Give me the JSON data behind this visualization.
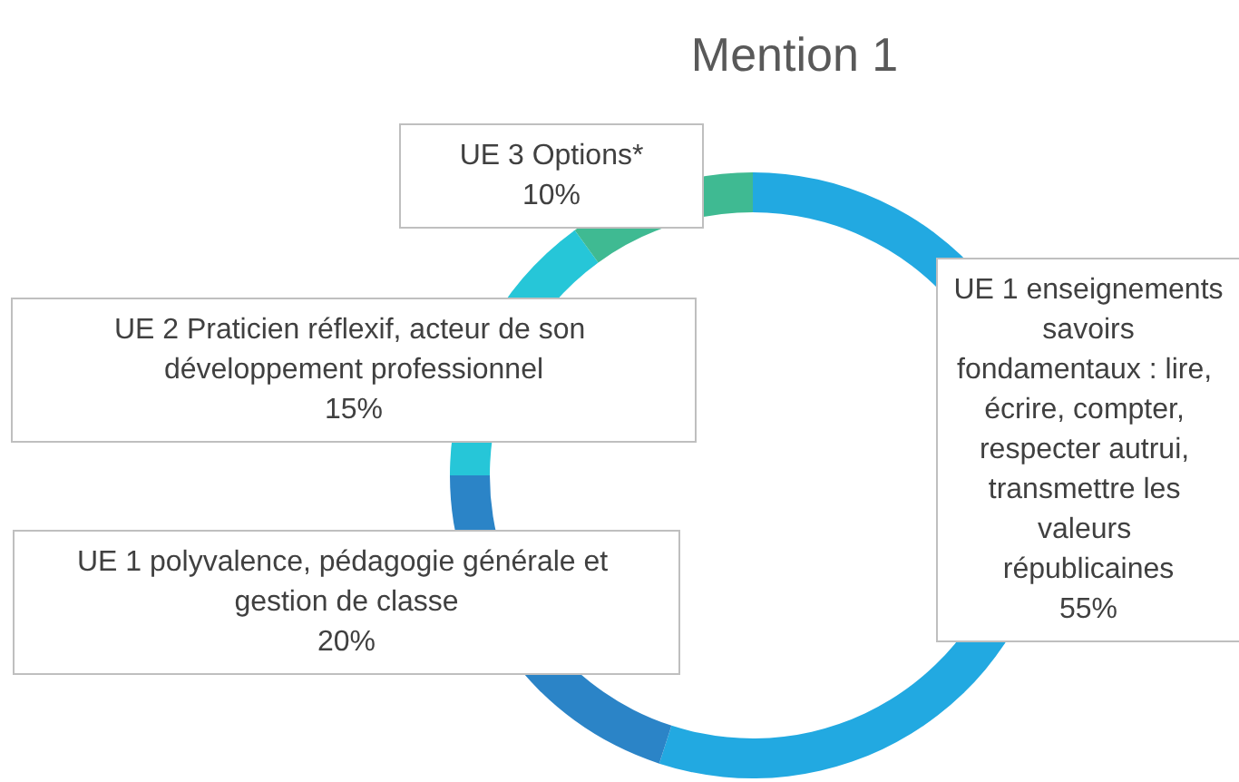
{
  "chart_data": {
    "type": "donut",
    "title": "Mention 1",
    "categories": [
      "UE 1 enseignements savoirs fondamentaux : lire, écrire, compter, respecter autrui, transmettre les valeurs républicaines",
      "UE 1 polyvalence, pédagogie générale et gestion de classe",
      "UE 2 Praticien réflexif, acteur de son développement professionnel",
      "UE 3 Options*"
    ],
    "values": [
      55,
      20,
      15,
      10
    ],
    "value_labels": [
      "55%",
      "20%",
      "15%",
      "10%"
    ],
    "colors": [
      "#22a9e1",
      "#2b84c7",
      "#26c6d8",
      "#3fba92"
    ],
    "legend": false
  }
}
